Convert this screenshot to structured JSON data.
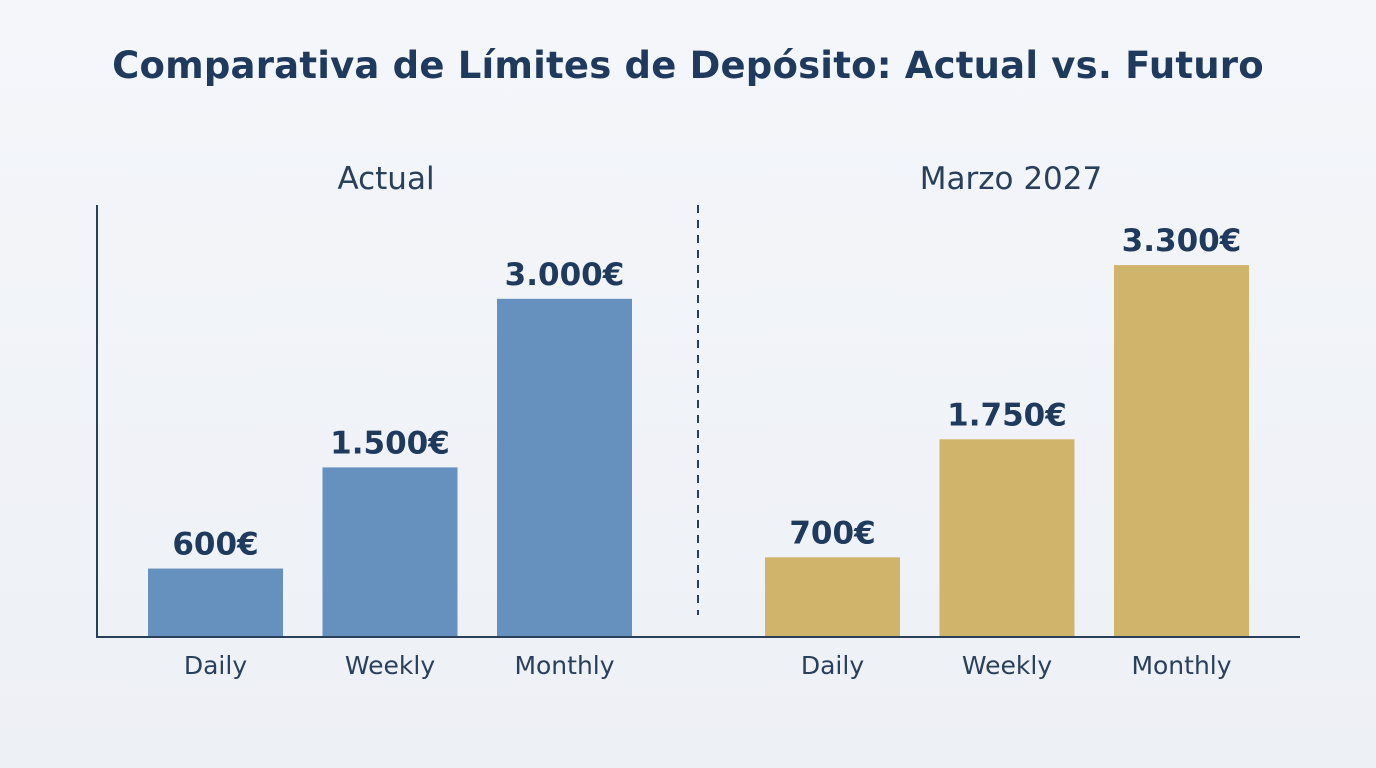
{
  "chart_data": {
    "type": "bar",
    "title": "Comparativa de Límites de Depósito: Actual vs. Futuro",
    "groups": [
      {
        "name": "Actual",
        "color": "#6690bd",
        "categories": [
          "Daily",
          "Weekly",
          "Monthly"
        ],
        "values": [
          600,
          1500,
          3000
        ],
        "labels": [
          "600€",
          "1.500€",
          "3.000€"
        ]
      },
      {
        "name": "Marzo 2027",
        "color": "#d0b46c",
        "categories": [
          "Daily",
          "Weekly",
          "Monthly"
        ],
        "values": [
          700,
          1750,
          3300
        ],
        "labels": [
          "700€",
          "1.750€",
          "3.300€"
        ]
      }
    ],
    "xlabel": "",
    "ylabel": "",
    "ylim": [
      0,
      3840
    ],
    "grid": false,
    "divider": "dashed"
  },
  "colors": {
    "axis": "#2a3f5a",
    "text": "#1f3a5c"
  }
}
